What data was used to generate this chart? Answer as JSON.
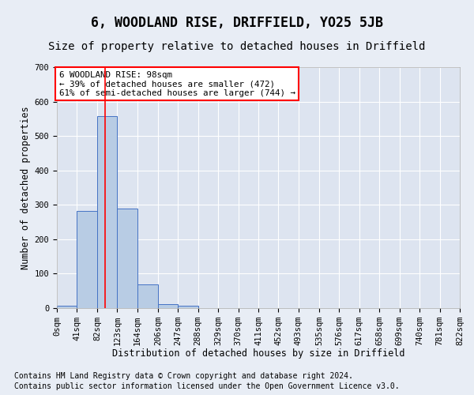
{
  "title": "6, WOODLAND RISE, DRIFFIELD, YO25 5JB",
  "subtitle": "Size of property relative to detached houses in Driffield",
  "xlabel": "Distribution of detached houses by size in Driffield",
  "ylabel": "Number of detached properties",
  "bar_edges": [
    0,
    41,
    82,
    123,
    164,
    206,
    247,
    288,
    329,
    370,
    411,
    452,
    493,
    535,
    576,
    617,
    658,
    699,
    740,
    781,
    822
  ],
  "bar_heights": [
    7,
    283,
    557,
    290,
    68,
    12,
    7,
    0,
    0,
    0,
    0,
    0,
    0,
    0,
    0,
    0,
    0,
    0,
    0,
    0
  ],
  "bar_color": "#b8cce4",
  "bar_edgecolor": "#4472c4",
  "property_size": 98,
  "vline_color": "#ff0000",
  "ylim": [
    0,
    700
  ],
  "xlim": [
    0,
    822
  ],
  "annotation_text": "6 WOODLAND RISE: 98sqm\n← 39% of detached houses are smaller (472)\n61% of semi-detached houses are larger (744) →",
  "annotation_box_color": "#ff0000",
  "footnote1": "Contains HM Land Registry data © Crown copyright and database right 2024.",
  "footnote2": "Contains public sector information licensed under the Open Government Licence v3.0.",
  "bg_color": "#e8edf5",
  "plot_bg_color": "#dde4f0",
  "grid_color": "#ffffff",
  "title_fontsize": 12,
  "subtitle_fontsize": 10,
  "axis_label_fontsize": 8.5,
  "tick_fontsize": 7.5,
  "footnote_fontsize": 7
}
